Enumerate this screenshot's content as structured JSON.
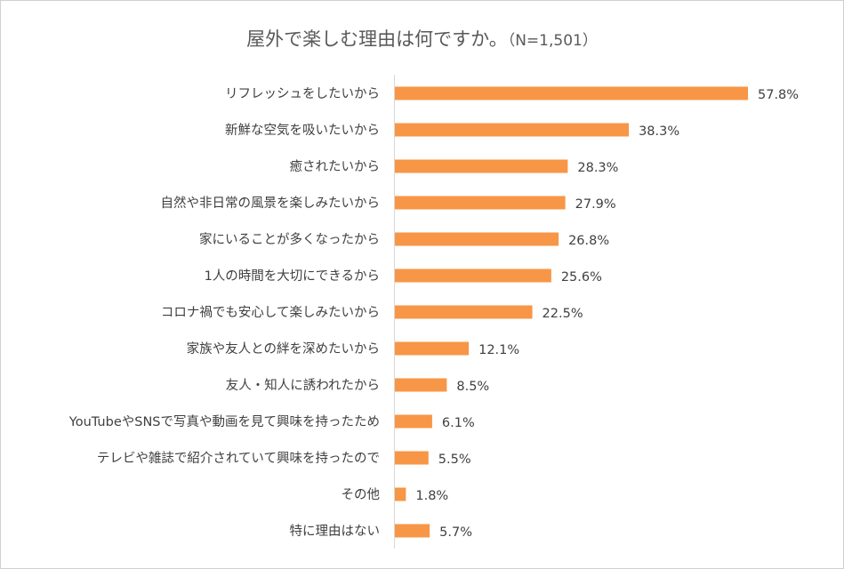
{
  "chart_data": {
    "type": "bar",
    "orientation": "horizontal",
    "title": "屋外で楽しむ理由は何ですか。",
    "subtitle": "（N=1,501）",
    "categories": [
      "リフレッシュをしたいから",
      "新鮮な空気を吸いたいから",
      "癒されたいから",
      "自然や非日常の風景を楽しみたいから",
      "家にいることが多くなったから",
      "1人の時間を大切にできるから",
      "コロナ禍でも安心して楽しみたいから",
      "家族や友人との絆を深めたいから",
      "友人・知人に誘われたから",
      "YouTubeやSNSで写真や動画を見て興味を持ったため",
      "テレビや雑誌で紹介されていて興味を持ったので",
      "その他",
      "特に理由はない"
    ],
    "values": [
      57.8,
      38.3,
      28.3,
      27.9,
      26.8,
      25.6,
      22.5,
      12.1,
      8.5,
      6.1,
      5.5,
      1.8,
      5.7
    ],
    "value_labels": [
      "57.8%",
      "38.3%",
      "28.3%",
      "27.9%",
      "26.8%",
      "25.6%",
      "22.5%",
      "12.1%",
      "8.5%",
      "6.1%",
      "5.5%",
      "1.8%",
      "5.7%"
    ],
    "xlim": [
      0,
      60
    ],
    "grid": false,
    "bar_color": "#f79646",
    "axis_color": "#d9d9d9"
  }
}
